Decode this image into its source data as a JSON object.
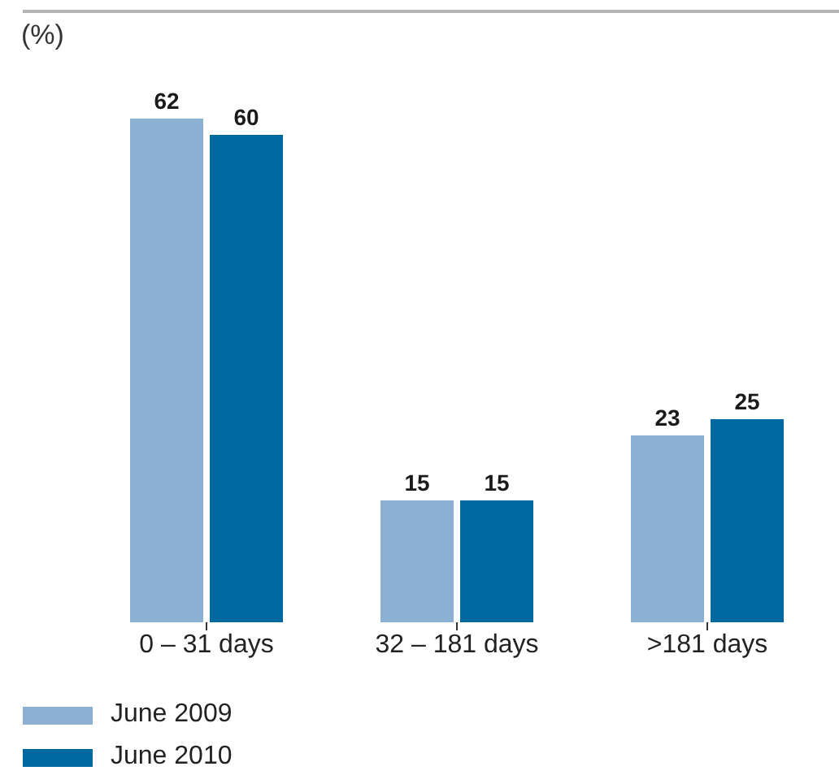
{
  "chart_data": {
    "type": "bar",
    "ylabel": "(%)",
    "categories": [
      "0 – 31 days",
      "32 – 181 days",
      ">181 days"
    ],
    "series": [
      {
        "name": "June 2009",
        "color": "#8cb0d4",
        "values": [
          62,
          15,
          23
        ]
      },
      {
        "name": "June 2010",
        "color": "#0069a2",
        "values": [
          60,
          15,
          25
        ]
      }
    ],
    "data_labels": true,
    "legend": "bottom left"
  }
}
